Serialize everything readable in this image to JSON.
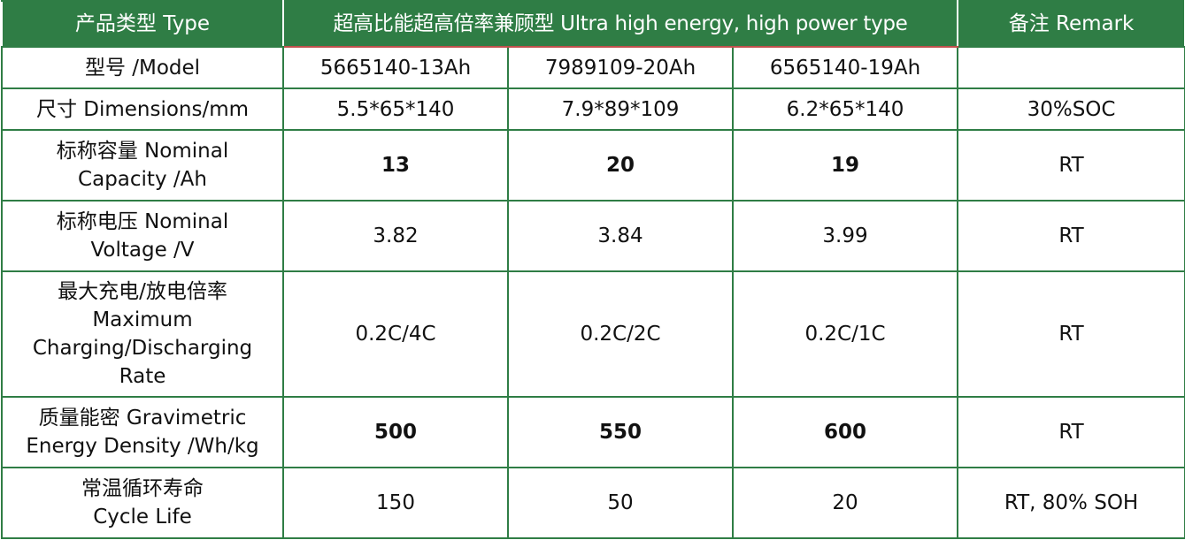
{
  "header": {
    "type": "产品类型 Type",
    "group": "超高比能超高倍率兼顾型  Ultra high energy, high power type",
    "remark": "备注 Remark"
  },
  "rows": [
    {
      "label": [
        "型号 /Model"
      ],
      "values": [
        "5665140-13Ah",
        "7989109-20Ah",
        "6565140-19Ah"
      ],
      "remark": null,
      "bold": false
    },
    {
      "label": [
        "尺寸 Dimensions/mm"
      ],
      "values": [
        "5.5*65*140",
        "7.9*89*109",
        "6.2*65*140"
      ],
      "remark": "30%SOC",
      "bold": false
    },
    {
      "label": [
        "标称容量 Nominal",
        "Capacity /Ah"
      ],
      "values": [
        "13",
        "20",
        "19"
      ],
      "remark": "RT",
      "bold": true
    },
    {
      "label": [
        "标称电压 Nominal",
        "Voltage /V"
      ],
      "values": [
        "3.82",
        "3.84",
        "3.99"
      ],
      "remark": "RT",
      "bold": false
    },
    {
      "label": [
        "最大充电/放电倍率",
        "Maximum",
        "Charging/Discharging",
        "Rate"
      ],
      "values": [
        "0.2C/4C",
        "0.2C/2C",
        "0.2C/1C"
      ],
      "remark": "RT",
      "bold": false
    },
    {
      "label": [
        "质量能密 Gravimetric",
        "Energy Density /Wh/kg"
      ],
      "values": [
        "500",
        "550",
        "600"
      ],
      "remark": "RT",
      "bold": true
    },
    {
      "label": [
        "常温循环寿命",
        "Cycle Life"
      ],
      "values": [
        "150",
        "50",
        "20"
      ],
      "remark": "RT, 80% SOH",
      "bold": false
    }
  ]
}
